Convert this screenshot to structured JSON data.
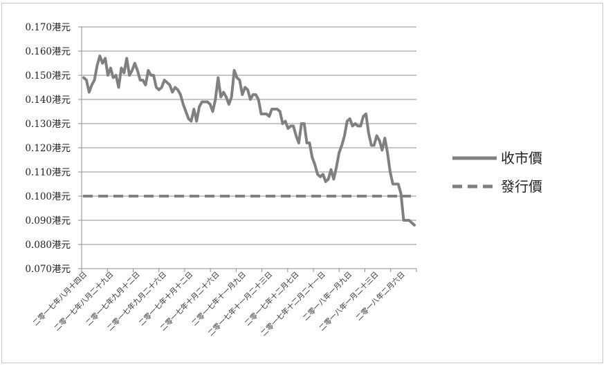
{
  "chart_data": {
    "type": "line",
    "y_tick_labels": [
      "0.170港元",
      "0.160港元",
      "0.150港元",
      "0.140港元",
      "0.130港元",
      "0.120港元",
      "0.110港元",
      "0.100港元",
      "0.090港元",
      "0.080港元",
      "0.070港元"
    ],
    "ylim": [
      0.07,
      0.17
    ],
    "grid": true,
    "legend_position": "right",
    "x_tick_labels": [
      "二零一七年八月十四日",
      "二零一七年八月二十九日",
      "二零一七年九月十二日",
      "二零一七年九月二十六日",
      "二零一七年十月十二日",
      "二零一七年十月二十六日",
      "二零一七年十一月九日",
      "二零一七年十一月二十三日",
      "二零一七年十二月七日",
      "二零一七年十二月二十一日",
      "二零一八年一月九日",
      "二零一八年一月二十三日",
      "二零一八年二月六日"
    ],
    "series": [
      {
        "name": "收市價",
        "color": "#808080",
        "style": "solid",
        "values": [
          0.149,
          0.148,
          0.143,
          0.146,
          0.148,
          0.154,
          0.158,
          0.155,
          0.157,
          0.15,
          0.153,
          0.149,
          0.15,
          0.145,
          0.153,
          0.151,
          0.157,
          0.15,
          0.152,
          0.155,
          0.152,
          0.148,
          0.148,
          0.146,
          0.152,
          0.15,
          0.15,
          0.145,
          0.144,
          0.145,
          0.148,
          0.147,
          0.146,
          0.143,
          0.145,
          0.144,
          0.142,
          0.138,
          0.135,
          0.132,
          0.131,
          0.136,
          0.131,
          0.137,
          0.139,
          0.139,
          0.139,
          0.138,
          0.135,
          0.14,
          0.149,
          0.141,
          0.143,
          0.141,
          0.138,
          0.141,
          0.152,
          0.149,
          0.148,
          0.142,
          0.145,
          0.144,
          0.14,
          0.142,
          0.142,
          0.14,
          0.134,
          0.134,
          0.134,
          0.133,
          0.136,
          0.136,
          0.136,
          0.135,
          0.13,
          0.131,
          0.128,
          0.129,
          0.129,
          0.125,
          0.122,
          0.13,
          0.13,
          0.122,
          0.122,
          0.116,
          0.113,
          0.109,
          0.108,
          0.109,
          0.106,
          0.107,
          0.111,
          0.107,
          0.112,
          0.118,
          0.121,
          0.125,
          0.131,
          0.132,
          0.129,
          0.13,
          0.129,
          0.129,
          0.133,
          0.134,
          0.126,
          0.121,
          0.121,
          0.125,
          0.123,
          0.119,
          0.124,
          0.118,
          0.11,
          0.105,
          0.105,
          0.105,
          0.101,
          0.09,
          0.09,
          0.09,
          0.089,
          0.088
        ]
      },
      {
        "name": "發行價",
        "color": "#808080",
        "style": "dashed",
        "values": [
          0.1,
          0.1
        ]
      }
    ]
  }
}
